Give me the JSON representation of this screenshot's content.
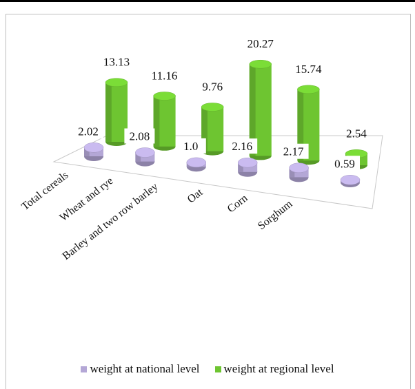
{
  "chart_data": {
    "type": "bar",
    "title": "",
    "xlabel": "",
    "ylabel": "",
    "categories": [
      "Total cereals",
      "Wheat and rye",
      "Barley and two row barley",
      "Oat",
      "Corn",
      "Sorghum"
    ],
    "series": [
      {
        "name": "weight at national level",
        "values": [
          2.02,
          2.08,
          1.0,
          2.16,
          2.17,
          0.59
        ],
        "labels": [
          "2.02",
          "2.08",
          "1.0",
          "2.16",
          "2.17",
          "0.59"
        ],
        "color": "#b4a7d6"
      },
      {
        "name": "weight at regional level",
        "values": [
          13.13,
          11.16,
          9.76,
          20.27,
          15.74,
          2.54
        ],
        "labels": [
          "13.13",
          "11.16",
          "9.76",
          "20.27",
          "15.74",
          "2.54"
        ],
        "color": "#6ec531"
      }
    ],
    "legend_position": "bottom",
    "grid": false
  }
}
